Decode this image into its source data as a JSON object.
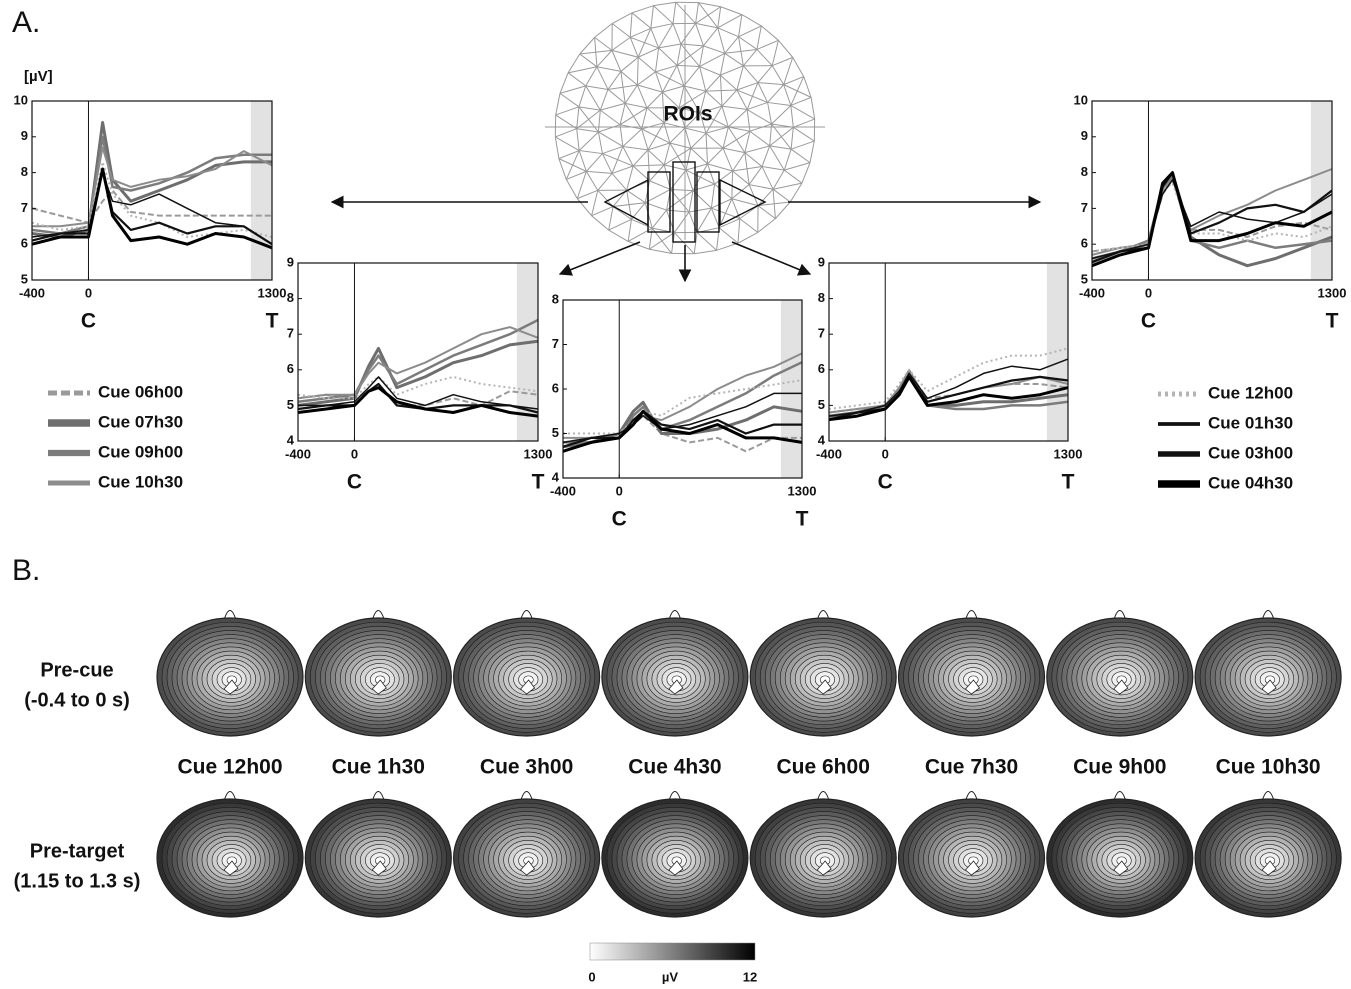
{
  "panels": {
    "a": "A.",
    "b": "B."
  },
  "roi_label": "ROIs",
  "legend": [
    {
      "name": "Cue 06h00",
      "color": "#9a9a9a",
      "dash": "dashed",
      "width": 2
    },
    {
      "name": "Cue 07h30",
      "color": "#6e6e6e",
      "dash": "solid",
      "width": 3
    },
    {
      "name": "Cue 09h00",
      "color": "#7c7c7c",
      "dash": "solid",
      "width": 2.5
    },
    {
      "name": "Cue 10h30",
      "color": "#8c8c8c",
      "dash": "solid",
      "width": 2
    },
    {
      "name": "Cue 12h00",
      "color": "#b4b4b4",
      "dash": "dotted",
      "width": 2
    },
    {
      "name": "Cue 01h30",
      "color": "#111111",
      "dash": "solid",
      "width": 1.5
    },
    {
      "name": "Cue 03h00",
      "color": "#111111",
      "dash": "solid",
      "width": 2.2
    },
    {
      "name": "Cue 04h30",
      "color": "#000000",
      "dash": "solid",
      "width": 3
    }
  ],
  "chart_data": [
    {
      "type": "line",
      "y_label": "[µV]",
      "x": [
        -400,
        -200,
        0,
        100,
        170,
        300,
        500,
        700,
        900,
        1100,
        1300
      ],
      "xlim": [
        -400,
        1300
      ],
      "xticks": [
        -400,
        0,
        1300
      ],
      "x_markers": [
        {
          "value": 0,
          "label": "C"
        },
        {
          "value": 1300,
          "label": "T"
        }
      ],
      "shade": [
        1150,
        1300
      ],
      "ylim": [
        5,
        10
      ],
      "yticks": [
        5,
        6,
        7,
        8,
        9,
        10
      ],
      "series": [
        {
          "values": [
            7,
            6.8,
            6.6,
            7.2,
            7.5,
            6.9,
            6.8,
            6.8,
            6.8,
            6.8,
            6.8
          ]
        },
        {
          "values": [
            6.3,
            6.2,
            6.4,
            9.4,
            7.8,
            7.2,
            7.5,
            7.8,
            8.2,
            8.3,
            8.3
          ]
        },
        {
          "values": [
            6.4,
            6.3,
            6.5,
            9.0,
            7.6,
            7.5,
            7.7,
            8.0,
            8.4,
            8.5,
            8.5
          ]
        },
        {
          "values": [
            6.5,
            6.5,
            6.6,
            8.7,
            7.8,
            7.6,
            7.8,
            7.9,
            8.1,
            8.6,
            8.2
          ]
        },
        {
          "values": [
            6.6,
            6.4,
            6.5,
            8.3,
            7.4,
            6.8,
            6.6,
            6.2,
            6.3,
            6.4,
            6.2
          ]
        },
        {
          "values": [
            6.2,
            6.3,
            6.4,
            8.0,
            7.2,
            7.1,
            7.4,
            7.0,
            6.6,
            6.5,
            6.0
          ]
        },
        {
          "values": [
            6.1,
            6.3,
            6.3,
            8.1,
            6.9,
            6.4,
            6.6,
            6.3,
            6.5,
            6.5,
            6.0
          ]
        },
        {
          "values": [
            6.0,
            6.2,
            6.2,
            8.1,
            6.8,
            6.1,
            6.2,
            6.0,
            6.3,
            6.2,
            5.9
          ]
        }
      ]
    },
    {
      "type": "line",
      "x": [
        -400,
        -200,
        0,
        100,
        170,
        300,
        500,
        700,
        900,
        1100,
        1300
      ],
      "xlim": [
        -400,
        1300
      ],
      "xticks": [
        -400,
        0,
        1300
      ],
      "x_markers": [
        {
          "value": 0,
          "label": "C"
        },
        {
          "value": 1300,
          "label": "T"
        }
      ],
      "shade": [
        1150,
        1300
      ],
      "ylim": [
        4,
        9
      ],
      "yticks": [
        4,
        5,
        6,
        7,
        8,
        9
      ],
      "series": [
        {
          "values": [
            5.2,
            5.3,
            5.2,
            5.4,
            5.6,
            5.0,
            5.0,
            5.2,
            5.0,
            5.4,
            5.3
          ]
        },
        {
          "values": [
            5.0,
            5.1,
            5.2,
            6.1,
            6.6,
            5.5,
            5.8,
            6.2,
            6.4,
            6.7,
            6.8
          ]
        },
        {
          "values": [
            5.1,
            5.2,
            5.3,
            6.0,
            6.4,
            5.6,
            6.0,
            6.4,
            6.7,
            7.0,
            7.4
          ]
        },
        {
          "values": [
            5.2,
            5.3,
            5.3,
            5.9,
            6.2,
            5.9,
            6.2,
            6.6,
            7.0,
            7.2,
            6.9
          ]
        },
        {
          "values": [
            5.3,
            5.2,
            5.2,
            5.6,
            5.8,
            5.3,
            5.6,
            5.8,
            5.6,
            5.5,
            5.4
          ]
        },
        {
          "values": [
            5.0,
            5.0,
            5.1,
            5.5,
            5.8,
            5.2,
            5.0,
            5.3,
            5.1,
            5.0,
            4.9
          ]
        },
        {
          "values": [
            4.9,
            5.0,
            5.0,
            5.4,
            5.6,
            5.0,
            4.9,
            5.0,
            5.0,
            5.0,
            4.8
          ]
        },
        {
          "values": [
            4.8,
            4.9,
            5.0,
            5.4,
            5.5,
            5.1,
            4.9,
            4.8,
            5.0,
            4.8,
            4.7
          ]
        }
      ]
    },
    {
      "type": "line",
      "x": [
        -400,
        -200,
        0,
        100,
        170,
        300,
        500,
        700,
        900,
        1100,
        1300
      ],
      "xlim": [
        -400,
        1300
      ],
      "xticks": [
        -400,
        0,
        1300
      ],
      "x_markers": [
        {
          "value": 0,
          "label": "C"
        },
        {
          "value": 1300,
          "label": "T"
        }
      ],
      "shade": [
        1150,
        1300
      ],
      "ylim": [
        4,
        8
      ],
      "yticks": [
        4,
        5,
        6,
        7,
        8
      ],
      "series": [
        {
          "values": [
            4.8,
            4.9,
            4.9,
            5.2,
            5.4,
            5.0,
            4.8,
            4.9,
            4.6,
            4.9,
            4.9
          ]
        },
        {
          "values": [
            4.7,
            4.8,
            5.0,
            5.5,
            5.7,
            5.0,
            5.0,
            5.1,
            5.3,
            5.6,
            5.5
          ]
        },
        {
          "values": [
            4.8,
            4.8,
            4.9,
            5.4,
            5.6,
            5.1,
            5.3,
            5.6,
            5.9,
            6.3,
            6.6
          ]
        },
        {
          "values": [
            4.9,
            4.9,
            5.0,
            5.3,
            5.4,
            5.3,
            5.6,
            6.0,
            6.3,
            6.5,
            6.8
          ]
        },
        {
          "values": [
            5.0,
            5.0,
            5.0,
            5.3,
            5.5,
            5.4,
            5.8,
            5.9,
            6.0,
            6.1,
            6.2
          ]
        },
        {
          "values": [
            4.8,
            4.9,
            5.0,
            5.2,
            5.4,
            5.1,
            5.2,
            5.4,
            5.6,
            5.9,
            5.9
          ]
        },
        {
          "values": [
            4.7,
            4.9,
            4.9,
            5.3,
            5.5,
            5.2,
            5.1,
            5.3,
            5.0,
            5.2,
            5.2
          ]
        },
        {
          "values": [
            4.6,
            4.8,
            4.9,
            5.2,
            5.5,
            5.1,
            5.0,
            5.2,
            4.9,
            4.9,
            4.8
          ]
        }
      ]
    },
    {
      "type": "line",
      "x": [
        -400,
        -200,
        0,
        100,
        170,
        300,
        500,
        700,
        900,
        1100,
        1300
      ],
      "xlim": [
        -400,
        1300
      ],
      "xticks": [
        -400,
        0,
        1300
      ],
      "x_markers": [
        {
          "value": 0,
          "label": "C"
        },
        {
          "value": 1300,
          "label": "T"
        }
      ],
      "shade": [
        1150,
        1300
      ],
      "ylim": [
        4,
        9
      ],
      "yticks": [
        4,
        5,
        6,
        7,
        8,
        9
      ],
      "series": [
        {
          "values": [
            4.8,
            4.9,
            5.0,
            5.5,
            5.9,
            5.2,
            5.3,
            5.5,
            5.6,
            5.6,
            5.5
          ]
        },
        {
          "values": [
            4.7,
            4.8,
            5.0,
            5.4,
            5.9,
            5.0,
            5.0,
            5.1,
            5.1,
            5.2,
            5.3
          ]
        },
        {
          "values": [
            4.6,
            4.8,
            4.9,
            5.3,
            5.8,
            5.0,
            4.9,
            4.9,
            5.0,
            5.0,
            5.1
          ]
        },
        {
          "values": [
            4.8,
            4.9,
            5.0,
            5.5,
            6.0,
            5.1,
            5.3,
            5.5,
            5.6,
            5.8,
            5.6
          ]
        },
        {
          "values": [
            4.9,
            5.0,
            5.1,
            5.6,
            6.0,
            5.4,
            5.8,
            6.2,
            6.4,
            6.4,
            6.6
          ]
        },
        {
          "values": [
            4.7,
            4.8,
            5.0,
            5.4,
            5.9,
            5.2,
            5.5,
            5.9,
            6.1,
            6.0,
            6.3
          ]
        },
        {
          "values": [
            4.6,
            4.8,
            4.9,
            5.3,
            5.8,
            5.1,
            5.3,
            5.5,
            5.7,
            5.8,
            5.7
          ]
        },
        {
          "values": [
            4.6,
            4.7,
            4.9,
            5.3,
            5.8,
            5.0,
            5.1,
            5.3,
            5.2,
            5.3,
            5.5
          ]
        }
      ]
    },
    {
      "type": "line",
      "x": [
        -400,
        -200,
        0,
        100,
        170,
        300,
        500,
        700,
        900,
        1100,
        1300
      ],
      "xlim": [
        -400,
        1300
      ],
      "xticks": [
        -400,
        0,
        1300
      ],
      "x_markers": [
        {
          "value": 0,
          "label": "C"
        },
        {
          "value": 1300,
          "label": "T"
        }
      ],
      "shade": [
        1150,
        1300
      ],
      "ylim": [
        5,
        10
      ],
      "yticks": [
        5,
        6,
        7,
        8,
        9,
        10
      ],
      "series": [
        {
          "values": [
            5.8,
            5.9,
            6.0,
            7.4,
            7.8,
            6.4,
            6.4,
            6.2,
            6.5,
            6.6,
            6.4
          ]
        },
        {
          "values": [
            5.5,
            5.8,
            6.0,
            7.6,
            7.9,
            6.2,
            5.7,
            5.4,
            5.6,
            5.9,
            6.2
          ]
        },
        {
          "values": [
            5.6,
            5.8,
            6.1,
            7.6,
            7.9,
            6.1,
            5.9,
            6.1,
            5.9,
            6.0,
            6.1
          ]
        },
        {
          "values": [
            5.7,
            5.9,
            6.0,
            7.5,
            7.8,
            6.4,
            6.8,
            7.1,
            7.5,
            7.8,
            8.1
          ]
        },
        {
          "values": [
            5.8,
            5.9,
            6.0,
            7.5,
            7.7,
            6.3,
            6.3,
            6.1,
            6.3,
            6.2,
            6.5
          ]
        },
        {
          "values": [
            5.6,
            5.8,
            6.0,
            7.4,
            7.8,
            6.5,
            6.9,
            6.7,
            6.6,
            6.9,
            7.4
          ]
        },
        {
          "values": [
            5.5,
            5.8,
            5.9,
            7.6,
            8.0,
            6.3,
            6.6,
            7.0,
            7.1,
            6.9,
            7.5
          ]
        },
        {
          "values": [
            5.4,
            5.7,
            5.9,
            7.7,
            8.0,
            6.1,
            6.1,
            6.3,
            6.6,
            6.5,
            6.9
          ]
        }
      ]
    }
  ],
  "topomaps": {
    "rows": [
      {
        "label": "Pre-cue",
        "sublabel": "(-0.4 to 0 s)"
      },
      {
        "label": "Pre-target",
        "sublabel": "(1.15 to 1.3 s)"
      }
    ],
    "columns": [
      "Cue 12h00",
      "Cue 1h30",
      "Cue 3h00",
      "Cue 4h30",
      "Cue 6h00",
      "Cue 7h30",
      "Cue 9h00",
      "Cue 10h30"
    ],
    "colorbar": {
      "range": [
        0,
        12
      ],
      "label": "µV"
    }
  }
}
